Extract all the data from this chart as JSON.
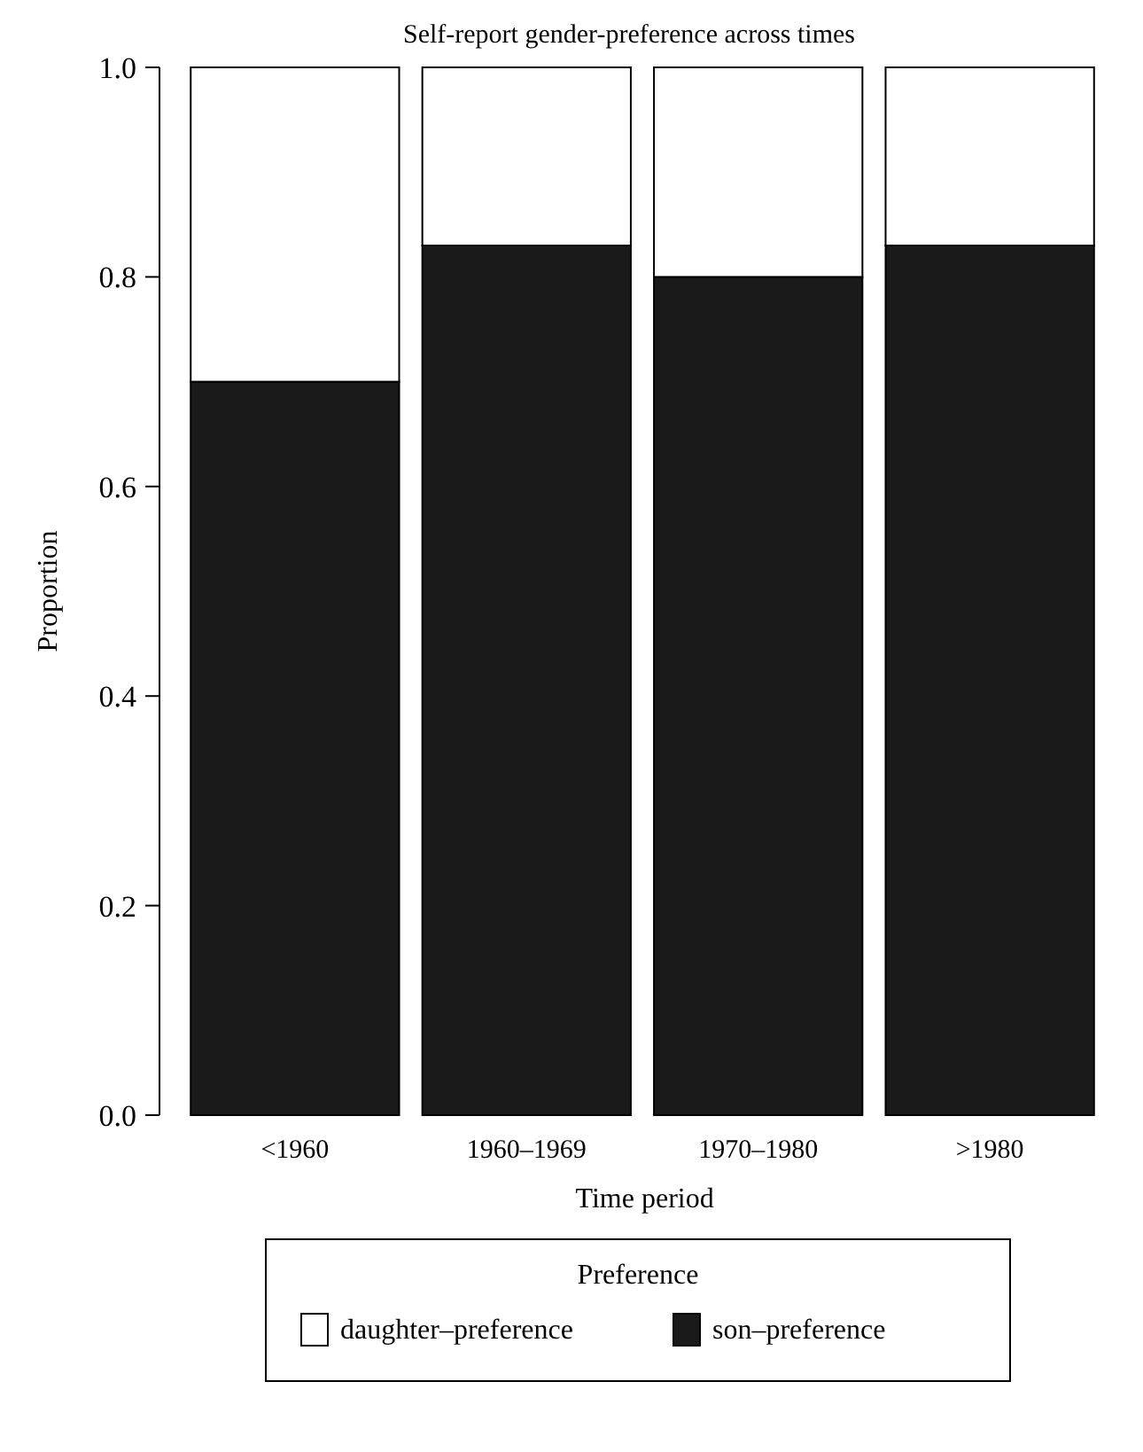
{
  "chart_data": {
    "type": "bar",
    "title": "Self-report gender-preference across times",
    "xlabel": "Time period",
    "ylabel": "Proportion",
    "legend_title": "Preference",
    "categories": [
      "<1960",
      "1960–1969",
      "1970–1980",
      ">1980"
    ],
    "series": [
      {
        "name": "son–preference",
        "color": "#1a1a1a",
        "values": [
          0.7,
          0.83,
          0.8,
          0.83
        ]
      },
      {
        "name": "daughter–preference",
        "color": "#ffffff",
        "values": [
          0.3,
          0.17,
          0.2,
          0.17
        ]
      }
    ],
    "stacked": true,
    "ylim": [
      0,
      1
    ],
    "yticks": [
      {
        "value": 0,
        "label": "0.0"
      },
      0.2,
      0.4,
      0.6,
      0.8,
      {
        "value": 1,
        "label": "1.0"
      }
    ],
    "grid": false,
    "legend": "bottom"
  }
}
